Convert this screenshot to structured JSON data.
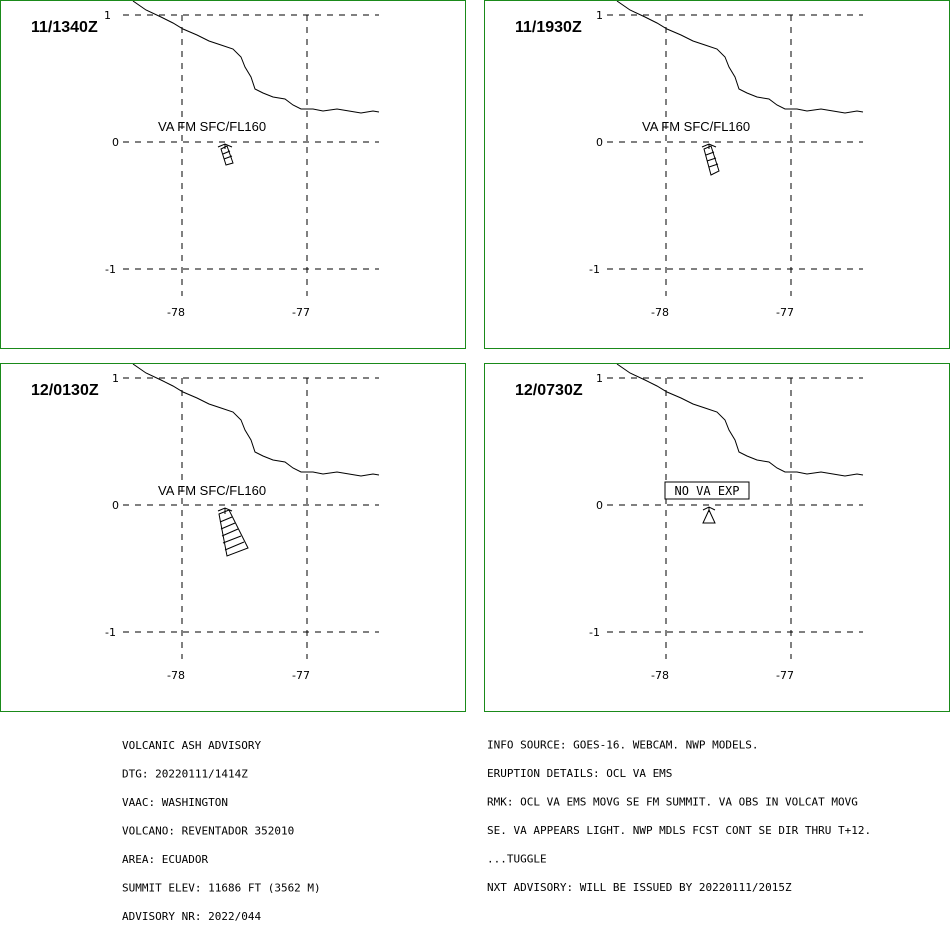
{
  "panels": [
    {
      "time": "11/1340Z",
      "label": "VA FM SFC/FL160",
      "lat_ticks": [
        "1",
        "0",
        "-1"
      ],
      "lon_ticks": [
        "-78",
        "-77"
      ]
    },
    {
      "time": "11/1930Z",
      "label": "VA FM SFC/FL160",
      "lat_ticks": [
        "1",
        "0",
        "-1"
      ],
      "lon_ticks": [
        "-78",
        "-77"
      ]
    },
    {
      "time": "12/0130Z",
      "label": "VA FM SFC/FL160",
      "lat_ticks": [
        "1",
        "0",
        "-1"
      ],
      "lon_ticks": [
        "-78",
        "-77"
      ]
    },
    {
      "time": "12/0730Z",
      "label": "NO VA EXP",
      "lat_ticks": [
        "1",
        "0",
        "-1"
      ],
      "lon_ticks": [
        "-78",
        "-77"
      ]
    }
  ],
  "colors": {
    "panel_border": "#1a8a1a"
  },
  "advisory": {
    "left_lines": [
      "VOLCANIC ASH ADVISORY",
      "DTG: 20220111/1414Z",
      "VAAC: WASHINGTON",
      "VOLCANO: REVENTADOR 352010",
      "AREA: ECUADOR",
      "SUMMIT ELEV: 11686 FT (3562 M)",
      "ADVISORY NR: 2022/044"
    ],
    "right_lines": [
      "INFO SOURCE: GOES-16. WEBCAM. NWP MODELS.",
      "ERUPTION DETAILS: OCL VA EMS",
      "RMK: OCL VA EMS MOVG SE FM SUMMIT. VA OBS IN VOLCAT MOVG",
      "SE. VA APPEARS LIGHT. NWP MDLS FCST CONT SE DIR THRU T+12.",
      "...TUGGLE",
      "NXT ADVISORY: WILL BE ISSUED BY 20220111/2015Z"
    ]
  }
}
